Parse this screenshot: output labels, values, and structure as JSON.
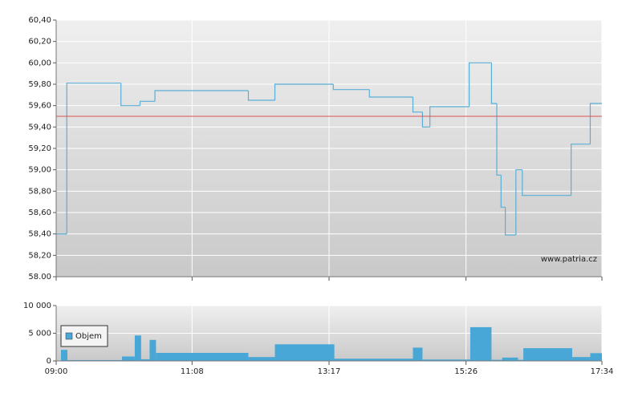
{
  "chart_data": [
    {
      "type": "line",
      "step": true,
      "x": [
        0,
        10,
        61,
        79,
        93,
        181,
        206,
        261,
        295,
        336,
        345,
        352,
        389,
        410,
        415,
        419,
        423,
        433,
        439,
        485,
        503,
        514
      ],
      "values": [
        58.4,
        59.81,
        59.6,
        59.64,
        59.74,
        59.65,
        59.8,
        59.75,
        59.68,
        59.54,
        59.4,
        59.59,
        60.0,
        59.62,
        58.95,
        58.65,
        58.39,
        59.0,
        58.76,
        59.24,
        59.62,
        59.62
      ],
      "color": "#5aaed6",
      "reference_line": 59.5,
      "reference_color": "#d9534f",
      "xlim": [
        0,
        514
      ],
      "xticks": [
        {
          "value": 0,
          "label": "09:00"
        },
        {
          "value": 128,
          "label": "11:08"
        },
        {
          "value": 257,
          "label": "13:17"
        },
        {
          "value": 386,
          "label": "15:26"
        },
        {
          "value": 514,
          "label": "17:34"
        }
      ],
      "ylim": [
        58.0,
        60.4
      ],
      "yticks": [
        {
          "value": 58.0,
          "label": "58.00"
        },
        {
          "value": 58.2,
          "label": "58,20"
        },
        {
          "value": 58.4,
          "label": "58,40"
        },
        {
          "value": 58.6,
          "label": "58,60"
        },
        {
          "value": 58.8,
          "label": "58,80"
        },
        {
          "value": 59.0,
          "label": "59,00"
        },
        {
          "value": 59.2,
          "label": "59,20"
        },
        {
          "value": 59.4,
          "label": "59,40"
        },
        {
          "value": 59.6,
          "label": "59,60"
        },
        {
          "value": 59.8,
          "label": "59,80"
        },
        {
          "value": 60.0,
          "label": "60,00"
        },
        {
          "value": 60.2,
          "label": "60,20"
        },
        {
          "value": 60.4,
          "label": "60,40"
        }
      ],
      "grid": true,
      "annotation": "www.patria.cz"
    },
    {
      "type": "histogram",
      "bins": [
        4.5,
        10.6,
        62,
        74,
        80,
        88,
        94,
        181,
        206,
        262,
        336,
        345,
        390,
        410,
        420,
        435,
        440,
        486,
        503,
        514
      ],
      "series": [
        {
          "name": "Objem",
          "color": "#48a7d6",
          "values": [
            2000,
            150,
            800,
            4600,
            300,
            3800,
            1450,
            700,
            3000,
            400,
            2400,
            250,
            6100,
            200,
            600,
            200,
            2300,
            700,
            1400
          ]
        }
      ],
      "xlim": [
        0,
        514
      ],
      "xticks": [
        {
          "value": 0,
          "label": "09:00"
        },
        {
          "value": 128,
          "label": "11:08"
        },
        {
          "value": 257,
          "label": "13:17"
        },
        {
          "value": 386,
          "label": "15:26"
        },
        {
          "value": 514,
          "label": "17:34"
        }
      ],
      "ylim": [
        0,
        10000
      ],
      "yticks": [
        0,
        {
          "value": 5000,
          "label": "5 000"
        },
        {
          "value": 10000,
          "label": "10 000"
        }
      ],
      "grid": true,
      "legend": "top-left"
    }
  ]
}
